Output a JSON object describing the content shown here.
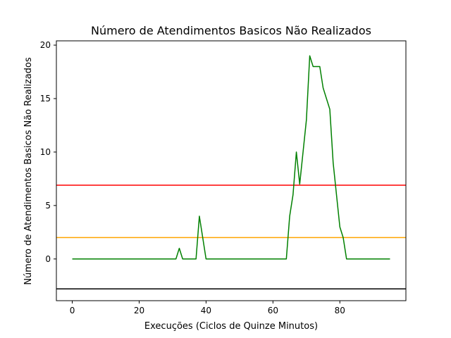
{
  "chart_data": {
    "type": "line",
    "title": "Número de Atendimentos Basicos Não Realizados",
    "xlabel": "Execuções (Ciclos de Quinze Minutos)",
    "ylabel": "Número de Atendimentos Basicos Não Realizados",
    "xlim": [
      -4.75,
      99.75
    ],
    "ylim": [
      -3.9,
      20.4
    ],
    "xticks": [
      0,
      20,
      40,
      60,
      80
    ],
    "yticks": [
      0,
      5,
      10,
      15,
      20
    ],
    "grid": false,
    "series": [
      {
        "color": "#008000",
        "x": [
          0,
          1,
          2,
          3,
          4,
          5,
          6,
          7,
          8,
          9,
          10,
          11,
          12,
          13,
          14,
          15,
          16,
          17,
          18,
          19,
          20,
          21,
          22,
          23,
          24,
          25,
          26,
          27,
          28,
          29,
          30,
          31,
          32,
          33,
          34,
          35,
          36,
          37,
          38,
          39,
          40,
          41,
          42,
          43,
          44,
          45,
          46,
          47,
          48,
          49,
          50,
          51,
          52,
          53,
          54,
          55,
          56,
          57,
          58,
          59,
          60,
          61,
          62,
          63,
          64,
          65,
          66,
          67,
          68,
          69,
          70,
          71,
          72,
          73,
          74,
          75,
          76,
          77,
          78,
          79,
          80,
          81,
          82,
          83,
          84,
          85,
          86,
          87,
          88,
          89,
          90,
          91,
          92,
          93,
          94,
          95
        ],
        "y": [
          0,
          0,
          0,
          0,
          0,
          0,
          0,
          0,
          0,
          0,
          0,
          0,
          0,
          0,
          0,
          0,
          0,
          0,
          0,
          0,
          0,
          0,
          0,
          0,
          0,
          0,
          0,
          0,
          0,
          0,
          0,
          0,
          1,
          0,
          0,
          0,
          0,
          0,
          4,
          2,
          0,
          0,
          0,
          0,
          0,
          0,
          0,
          0,
          0,
          0,
          0,
          0,
          0,
          0,
          0,
          0,
          0,
          0,
          0,
          0,
          0,
          0,
          0,
          0,
          0,
          4,
          6,
          10,
          7,
          10,
          13,
          19,
          18,
          18,
          18,
          16,
          15,
          14,
          9,
          6,
          3,
          2,
          0,
          0,
          0,
          0,
          0,
          0,
          0,
          0,
          0,
          0,
          0,
          0,
          0,
          0
        ]
      }
    ],
    "hlines": [
      {
        "y": 6.9,
        "color": "#ff0000"
      },
      {
        "y": 2.0,
        "color": "#ffa500"
      },
      {
        "y": -2.8,
        "color": "#000000"
      }
    ]
  }
}
